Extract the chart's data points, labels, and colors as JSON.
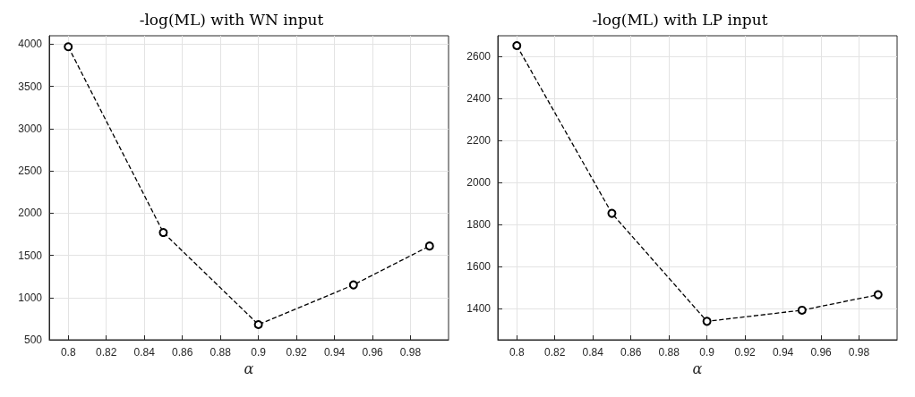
{
  "chart_data": [
    {
      "type": "line",
      "title": "-log(ML) with WN input",
      "xlabel": "α",
      "x": [
        0.8,
        0.85,
        0.9,
        0.95,
        0.99
      ],
      "series": [
        {
          "color": "#000000",
          "values": [
            3970,
            1770,
            680,
            1150,
            1610
          ]
        }
      ],
      "xlim": [
        0.79,
        1.0
      ],
      "xticks": [
        0.8,
        0.82,
        0.84,
        0.86,
        0.88,
        0.9,
        0.92,
        0.94,
        0.96,
        0.98
      ],
      "ylim": [
        500,
        4100
      ],
      "yticks": [
        500,
        1000,
        1500,
        2000,
        2500,
        3000,
        3500,
        4000
      ],
      "grid": true,
      "marker": "circle",
      "line_style": "dashed"
    },
    {
      "type": "line",
      "title": "-log(ML) with LP input",
      "xlabel": "α",
      "x": [
        0.8,
        0.85,
        0.9,
        0.95,
        0.99
      ],
      "series": [
        {
          "color": "#000000",
          "values": [
            2653,
            1853,
            1338,
            1391,
            1465
          ]
        }
      ],
      "xlim": [
        0.79,
        1.0
      ],
      "xticks": [
        0.8,
        0.82,
        0.84,
        0.86,
        0.88,
        0.9,
        0.92,
        0.94,
        0.96,
        0.98
      ],
      "ylim": [
        1250,
        2700
      ],
      "yticks": [
        1400,
        1600,
        1800,
        2000,
        2200,
        2400,
        2600
      ],
      "grid": true,
      "marker": "circle",
      "line_style": "dashed"
    }
  ]
}
